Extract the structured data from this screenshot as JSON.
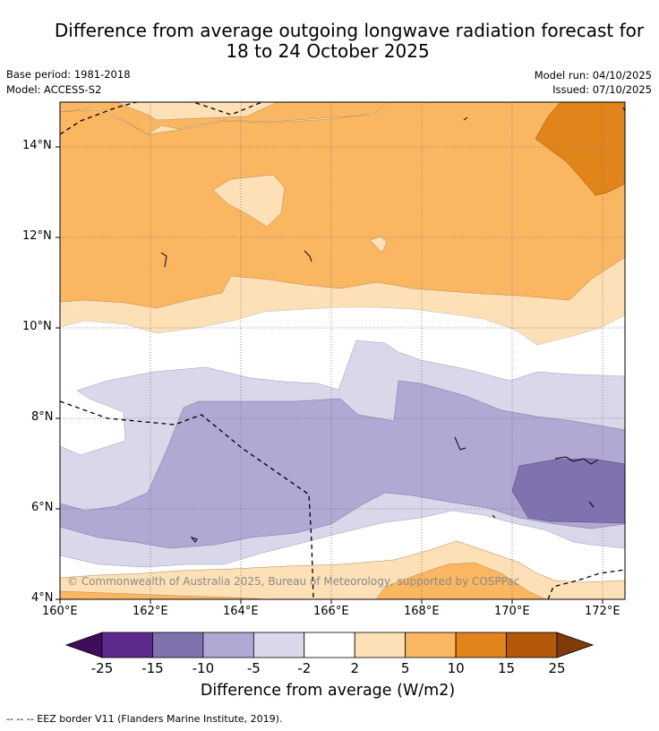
{
  "header": {
    "title_line1": "Difference from average outgoing longwave radiation forecast for",
    "title_line2": "18 to 24 October 2025",
    "base_period": "Base period: 1981-2018",
    "model": "Model: ACCESS-S2",
    "model_run": "Model run: 04/10/2025",
    "issued": "Issued: 07/10/2025"
  },
  "map": {
    "lon_labels": [
      "160°E",
      "162°E",
      "164°E",
      "166°E",
      "168°E",
      "170°E",
      "172°E"
    ],
    "lat_labels": [
      "14°N",
      "12°N",
      "10°N",
      "8°N",
      "6°N",
      "4°N"
    ],
    "copyright": "© Commonwealth of Australia 2025, Bureau of Meteorology, supported by COSPPac"
  },
  "colorbar": {
    "tick_labels": [
      "-25",
      "-15",
      "-10",
      "-5",
      "-2",
      "2",
      "5",
      "10",
      "15",
      "25"
    ],
    "colors": [
      "#3f0d5a",
      "#5e2a8e",
      "#8072ae",
      "#b1a9d3",
      "#d9d8ea",
      "#ffffff",
      "#fde0b5",
      "#fbb662",
      "#e1841a",
      "#b35709",
      "#7f3b08"
    ],
    "title": "Difference from average (W/m2)"
  },
  "footnote": "--  --  -- EEZ border V11 (Flanders Marine Institute, 2019)."
}
